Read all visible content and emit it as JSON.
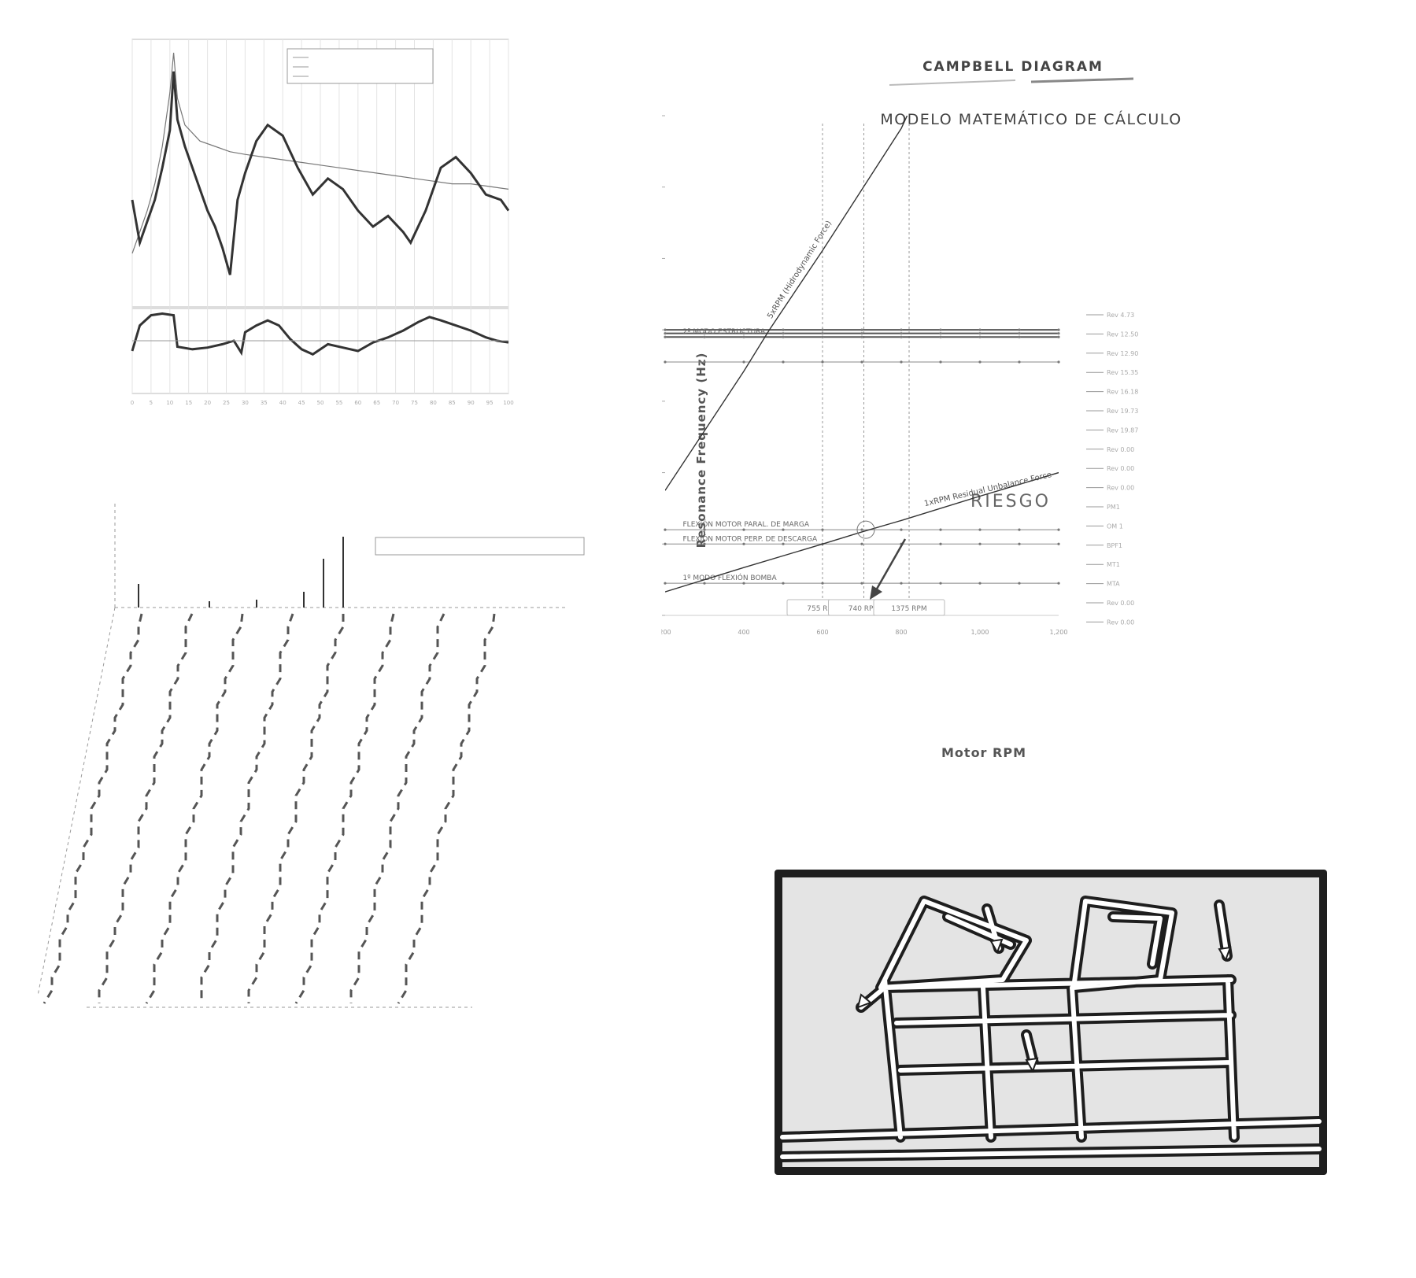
{
  "colors": {
    "ink": "#333333",
    "grid": "#aaaaaa",
    "screen_bg": "#e4e4e4",
    "screen_frame": "#1e1e1e",
    "mode_lines": "#ffffff"
  },
  "frf": {
    "type": "line",
    "legend_entries": [
      "",
      "",
      ""
    ],
    "xlim": [
      0,
      100
    ],
    "x_ticks": [
      "0",
      "5",
      "10",
      "15",
      "20",
      "25",
      "30",
      "35",
      "40",
      "45",
      "50",
      "55",
      "60",
      "65",
      "70",
      "75",
      "80",
      "85",
      "90",
      "95",
      "100"
    ],
    "series": [
      {
        "values": [
          [
            0,
            20
          ],
          [
            2,
            28
          ],
          [
            4,
            36
          ],
          [
            6,
            46
          ],
          [
            8,
            60
          ],
          [
            10,
            80
          ],
          [
            11,
            95
          ],
          [
            12,
            78
          ],
          [
            14,
            68
          ],
          [
            18,
            62
          ],
          [
            22,
            60
          ],
          [
            26,
            58
          ],
          [
            30,
            57
          ],
          [
            35,
            56
          ],
          [
            40,
            55
          ],
          [
            45,
            54
          ],
          [
            50,
            53
          ],
          [
            55,
            52
          ],
          [
            60,
            51
          ],
          [
            65,
            50
          ],
          [
            70,
            49
          ],
          [
            75,
            48
          ],
          [
            80,
            47
          ],
          [
            85,
            46
          ],
          [
            90,
            46
          ],
          [
            95,
            45
          ],
          [
            100,
            44
          ]
        ]
      },
      {
        "values": [
          [
            0,
            40
          ],
          [
            2,
            24
          ],
          [
            4,
            32
          ],
          [
            6,
            40
          ],
          [
            8,
            52
          ],
          [
            10,
            66
          ],
          [
            11,
            88
          ],
          [
            12,
            70
          ],
          [
            14,
            60
          ],
          [
            16,
            52
          ],
          [
            18,
            44
          ],
          [
            20,
            36
          ],
          [
            22,
            30
          ],
          [
            24,
            22
          ],
          [
            26,
            12
          ],
          [
            28,
            40
          ],
          [
            30,
            50
          ],
          [
            33,
            62
          ],
          [
            36,
            68
          ],
          [
            40,
            64
          ],
          [
            44,
            52
          ],
          [
            48,
            42
          ],
          [
            52,
            48
          ],
          [
            56,
            44
          ],
          [
            60,
            36
          ],
          [
            64,
            30
          ],
          [
            68,
            34
          ],
          [
            72,
            28
          ],
          [
            74,
            24
          ],
          [
            78,
            36
          ],
          [
            82,
            52
          ],
          [
            86,
            56
          ],
          [
            90,
            50
          ],
          [
            94,
            42
          ],
          [
            98,
            40
          ],
          [
            100,
            36
          ]
        ]
      }
    ],
    "phase": {
      "values": [
        [
          0,
          50
        ],
        [
          2,
          80
        ],
        [
          5,
          92
        ],
        [
          8,
          94
        ],
        [
          11,
          92
        ],
        [
          12,
          55
        ],
        [
          16,
          52
        ],
        [
          20,
          54
        ],
        [
          24,
          58
        ],
        [
          27,
          62
        ],
        [
          29,
          48
        ],
        [
          30,
          72
        ],
        [
          33,
          80
        ],
        [
          36,
          86
        ],
        [
          39,
          80
        ],
        [
          42,
          64
        ],
        [
          45,
          52
        ],
        [
          48,
          46
        ],
        [
          52,
          58
        ],
        [
          56,
          54
        ],
        [
          60,
          50
        ],
        [
          64,
          60
        ],
        [
          68,
          66
        ],
        [
          72,
          74
        ],
        [
          76,
          84
        ],
        [
          79,
          90
        ],
        [
          82,
          86
        ],
        [
          86,
          80
        ],
        [
          90,
          74
        ],
        [
          94,
          66
        ],
        [
          97,
          62
        ],
        [
          100,
          60
        ]
      ]
    }
  },
  "campbell": {
    "type": "line",
    "title": "CAMPBELL DIAGRAM",
    "subtitle": "MODELO MATEMÁTICO DE CÁLCULO",
    "xlabel": "Motor RPM",
    "ylabel": "Resonance Frequency (Hz)",
    "xlim": [
      200,
      1200
    ],
    "ylim": [
      0,
      70
    ],
    "x_ticks": [
      200,
      400,
      600,
      800,
      1000,
      1200
    ],
    "y_ticks": [
      0,
      10,
      20,
      30,
      40,
      50,
      60,
      70
    ],
    "series": [
      {
        "name": "5xRPM (Hidrodynamic Force)",
        "values": [
          [
            200,
            17.5
          ],
          [
            400,
            34.2
          ],
          [
            465,
            40.0
          ],
          [
            600,
            51.1
          ],
          [
            800,
            68.2
          ],
          [
            815,
            70.0
          ]
        ]
      },
      {
        "name": "1xRPM Residual Unbalance Force",
        "values": [
          [
            200,
            3.3
          ],
          [
            400,
            6.7
          ],
          [
            600,
            10.0
          ],
          [
            700,
            11.7
          ],
          [
            800,
            13.3
          ],
          [
            1000,
            16.7
          ],
          [
            1200,
            20.0
          ]
        ]
      }
    ],
    "horizontal_lines": [
      {
        "y": 40.0,
        "label": ""
      },
      {
        "y": 39.5,
        "label": ""
      },
      {
        "y": 39.0,
        "label": "2º MODO ESTRUCTURA"
      },
      {
        "y": 35.5,
        "label": ""
      },
      {
        "y": 12.0,
        "label": "FLEXIÓN MOTOR PARAL. DE MARGA"
      },
      {
        "y": 10.0,
        "label": "FLEXIÓN MOTOR PERP. DE DESCARGA"
      },
      {
        "y": 4.5,
        "label": "1º MODO FLEXIÓN BOMBA"
      }
    ],
    "vertical_lines": [
      {
        "x": 600,
        "label": "755 RPM"
      },
      {
        "x": 705,
        "label": "740 RPM"
      },
      {
        "x": 820,
        "label": "1375 RPM"
      }
    ],
    "annotation": "RIESGO",
    "annotation_point": [
      710,
      12.0
    ],
    "legend_entries": [
      "Rev 4.73",
      "Rev 12.50",
      "Rev 12.90",
      "Rev 15.35",
      "Rev 16.18",
      "Rev 19.73",
      "Rev 19.87",
      "Rev 0.00",
      "Rev 0.00",
      "Rev 0.00",
      "PM1",
      "OM 1",
      "BPF1",
      "MT1",
      "MTA",
      "Rev 0.00",
      "Rev 0.00"
    ]
  },
  "waterfall": {
    "type": "line",
    "legend_text": "",
    "traces": 8,
    "peak_frequencies": [
      30,
      120,
      180,
      240,
      265,
      290
    ]
  },
  "mode_shape": {
    "frame": "structure-mode-shape"
  }
}
